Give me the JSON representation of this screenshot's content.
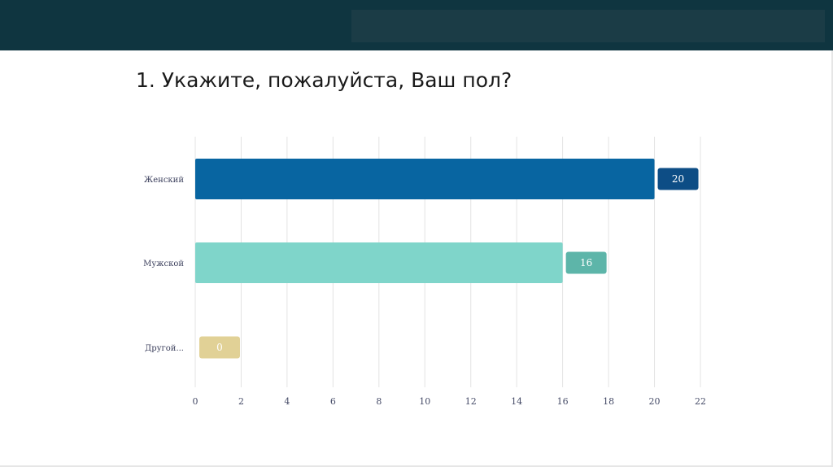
{
  "page": {
    "title": "1. Укажите, пожалуйста, Ваш пол?"
  },
  "chart_data": {
    "type": "bar",
    "orientation": "horizontal",
    "title": "",
    "xlabel": "",
    "ylabel": "",
    "categories": [
      "Женский",
      "Мужской",
      "Другой..."
    ],
    "values": [
      20,
      16,
      0
    ],
    "value_labels": [
      "20",
      "16",
      "0"
    ],
    "colors": [
      "#0865a1",
      "#7fd5ca",
      "#e1d196"
    ],
    "label_colors": [
      "#0d4d85",
      "#5db5a9",
      "#e1d196"
    ],
    "xlim": [
      0,
      22
    ],
    "xticks": [
      "0",
      "2",
      "4",
      "6",
      "8",
      "10",
      "12",
      "14",
      "16",
      "18",
      "20",
      "22"
    ],
    "grid": true,
    "legend": "none"
  }
}
